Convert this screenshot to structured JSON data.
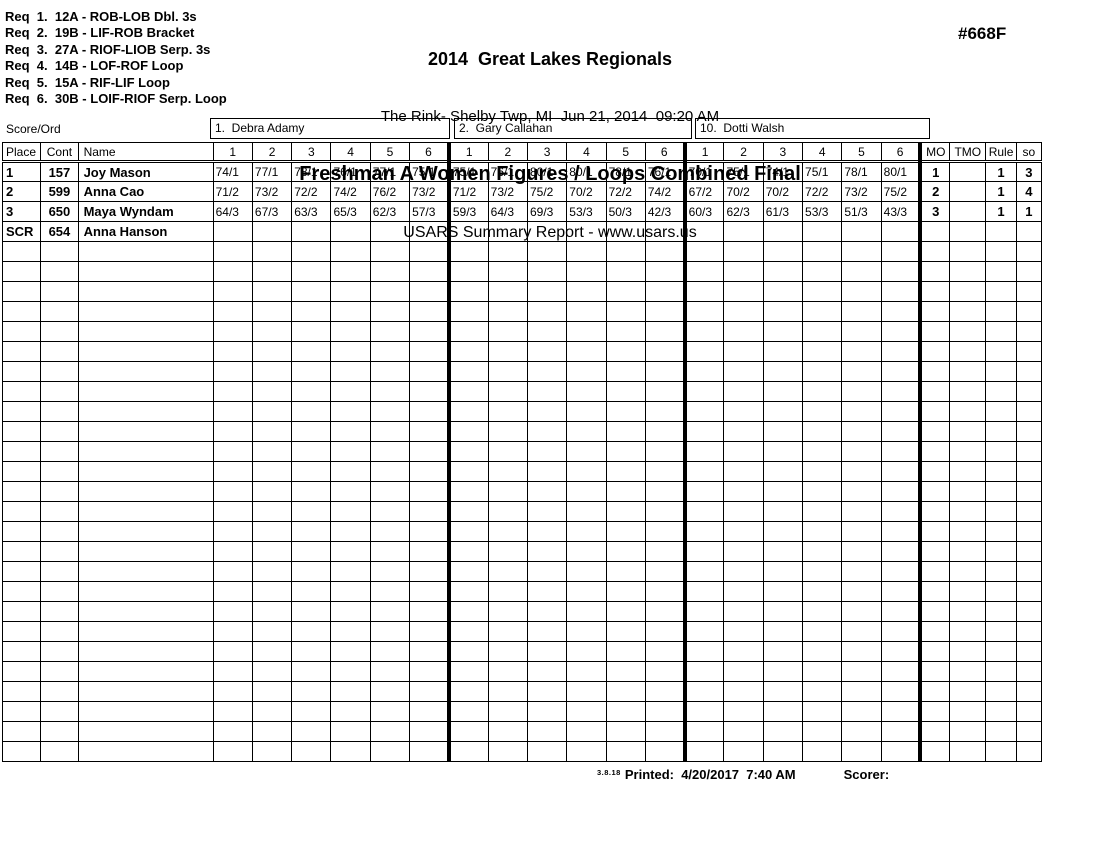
{
  "header": {
    "requirements": [
      "Req  1.  12A - ROB-LOB Dbl. 3s",
      "Req  2.  19B - LIF-ROB Bracket",
      "Req  3.  27A - RIOF-LIOB Serp. 3s",
      "Req  4.  14B - LOF-ROF Loop",
      "Req  5.  15A - RIF-LIF Loop",
      "Req  6.  30B - LOIF-RIOF Serp. Loop"
    ],
    "title": "2014  Great Lakes Regionals",
    "venue_line": "The Rink- Shelby Twp, MI  Jun 21, 2014  09:20 AM",
    "event_title": "Freshman A Women Figures / Loops Combined Final",
    "report_line": "USARS Summary Report - www.usars.us",
    "event_number": "#668F"
  },
  "table": {
    "score_ord_label": "Score/Ord",
    "judges": [
      {
        "label": "1.  Debra Adamy"
      },
      {
        "label": "2.  Gary Callahan"
      },
      {
        "label": "10.  Dotti Walsh"
      }
    ],
    "columns": {
      "place": "Place",
      "cont": "Cont",
      "name": "Name",
      "score_cols": [
        "1",
        "2",
        "3",
        "4",
        "5",
        "6"
      ],
      "mo": "MO",
      "tmo": "TMO",
      "rule": "Rule",
      "so": "so"
    },
    "rows": [
      {
        "place": "1",
        "cont": "157",
        "name": "Joy Mason",
        "judge1": [
          "74/1",
          "77/1",
          "78/1",
          "76/1",
          "77/1",
          "75/1"
        ],
        "judge2": [
          "75/1",
          "76/1",
          "80/1",
          "80/1",
          "78/1",
          "76/1"
        ],
        "judge3": [
          "70/1",
          "75/1",
          "74/1",
          "75/1",
          "78/1",
          "80/1"
        ],
        "mo": "1",
        "tmo": "",
        "rule": "1",
        "so": "3"
      },
      {
        "place": "2",
        "cont": "599",
        "name": "Anna Cao",
        "judge1": [
          "71/2",
          "73/2",
          "72/2",
          "74/2",
          "76/2",
          "73/2"
        ],
        "judge2": [
          "71/2",
          "73/2",
          "75/2",
          "70/2",
          "72/2",
          "74/2"
        ],
        "judge3": [
          "67/2",
          "70/2",
          "70/2",
          "72/2",
          "73/2",
          "75/2"
        ],
        "mo": "2",
        "tmo": "",
        "rule": "1",
        "so": "4"
      },
      {
        "place": "3",
        "cont": "650",
        "name": "Maya Wyndam",
        "judge1": [
          "64/3",
          "67/3",
          "63/3",
          "65/3",
          "62/3",
          "57/3"
        ],
        "judge2": [
          "59/3",
          "64/3",
          "69/3",
          "53/3",
          "50/3",
          "42/3"
        ],
        "judge3": [
          "60/3",
          "62/3",
          "61/3",
          "53/3",
          "51/3",
          "43/3"
        ],
        "mo": "3",
        "tmo": "",
        "rule": "1",
        "so": "1"
      },
      {
        "place": "SCR",
        "cont": "654",
        "name": "Anna Hanson",
        "judge1": [
          "",
          "",
          "",
          "",
          "",
          ""
        ],
        "judge2": [
          "",
          "",
          "",
          "",
          "",
          ""
        ],
        "judge3": [
          "",
          "",
          "",
          "",
          "",
          ""
        ],
        "mo": "",
        "tmo": "",
        "rule": "",
        "so": ""
      }
    ],
    "empty_row_count": 26
  },
  "footer": {
    "version": "3.8.18",
    "printed_label": "Printed:  4/20/2017  7:40 AM",
    "scorer_label": "Scorer:"
  },
  "colors": {
    "ink": "#000000",
    "paper": "#ffffff"
  }
}
